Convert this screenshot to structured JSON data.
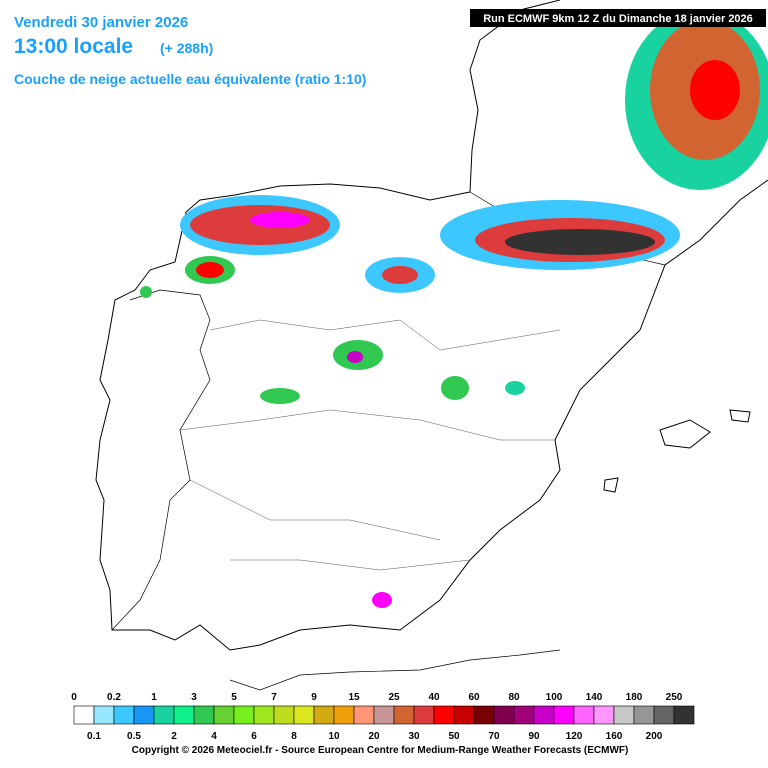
{
  "header": {
    "date": "Vendredi 30 janvier 2026",
    "time": "13:00 locale",
    "lead": "(+ 288h)",
    "product": "Couche de neige actuelle eau équivalente (ratio 1:10)",
    "run": "Run ECMWF 9km 12 Z du Dimanche 18 janvier 2026"
  },
  "legend": {
    "thresholds": [
      0,
      0.1,
      0.2,
      0.5,
      1,
      2,
      3,
      4,
      5,
      6,
      7,
      8,
      9,
      10,
      15,
      20,
      25,
      30,
      40,
      50,
      60,
      70,
      80,
      90,
      100,
      120,
      140,
      160,
      180,
      200,
      250
    ],
    "colors": [
      "#ffffff",
      "#96e6ff",
      "#3cc8ff",
      "#1896f5",
      "#18d2a0",
      "#12f08c",
      "#30c850",
      "#64d232",
      "#78f01e",
      "#a0e61e",
      "#bedc1e",
      "#dce61e",
      "#d2aa14",
      "#f0a00a",
      "#ff9678",
      "#c89696",
      "#d26432",
      "#dc3c3c",
      "#ff0000",
      "#c80000",
      "#780000",
      "#800050",
      "#a00078",
      "#c800c8",
      "#ff00ff",
      "#ff64ff",
      "#ff96ff",
      "#c8c8c8",
      "#969696",
      "#646464",
      "#323232"
    ]
  },
  "copyright": "Copyright © 2026 Meteociel.fr - Source European Centre for Medium-Range Weather Forecasts (ECMWF)"
}
